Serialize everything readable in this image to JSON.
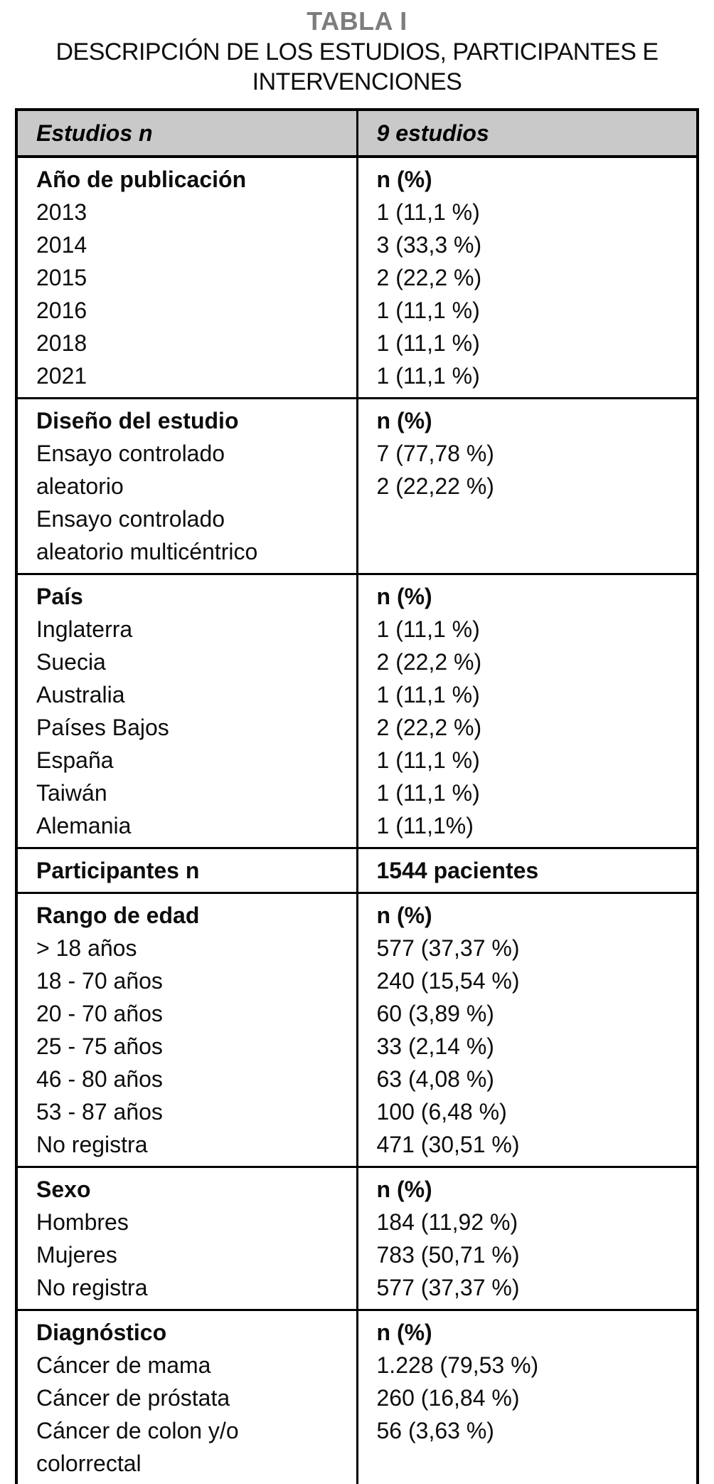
{
  "page": {
    "title": "TABLA I",
    "subtitle_lines": [
      "DESCRIPCIÓN DE LOS ESTUDIOS, PARTICIPANTES E",
      "INTERVENCIONES"
    ]
  },
  "colors": {
    "header_bg": "#c9c9c9",
    "title_gray": "#7d7d7d",
    "border": "#000000"
  },
  "table": {
    "header": {
      "col1": "Estudios n",
      "col2": "9 estudios"
    },
    "sections": [
      {
        "id": "ano-de-publicacion",
        "left": [
          "Año de publicación",
          "2013",
          "2014",
          "2015",
          "2016",
          "2018",
          "2021"
        ],
        "right": [
          "n (%)",
          "1 (11,1 %)",
          "3 (33,3 %)",
          "2 (22,2 %)",
          "1 (11,1 %)",
          "1 (11,1 %)",
          "1 (11,1 %)"
        ]
      },
      {
        "id": "diseno-del-estudio",
        "left": [
          "Diseño del estudio",
          "Ensayo controlado",
          "aleatorio",
          "Ensayo controlado",
          "aleatorio multicéntrico"
        ],
        "right": [
          "n (%)",
          "7 (77,78 %)",
          "2 (22,22 %)"
        ]
      },
      {
        "id": "pais",
        "left": [
          "País",
          "Inglaterra",
          "Suecia",
          "Australia",
          "Países Bajos",
          "España",
          "Taiwán",
          "Alemania"
        ],
        "right": [
          "n (%)",
          "1 (11,1 %)",
          "2 (22,2 %)",
          "1 (11,1 %)",
          "2 (22,2 %)",
          "1 (11,1 %)",
          "1 (11,1 %)",
          "1 (11,1%)"
        ]
      },
      {
        "id": "participantes",
        "left": [
          "Participantes n"
        ],
        "right": [
          "1544 pacientes"
        ]
      },
      {
        "id": "rango-de-edad",
        "left": [
          "Rango de edad",
          "> 18 años",
          "18 - 70 años",
          "20 - 70 años",
          "25 - 75 años",
          "46 - 80 años",
          "53 - 87 años",
          "No registra"
        ],
        "right": [
          "n (%)",
          "577 (37,37 %)",
          "240 (15,54 %)",
          "60 (3,89 %)",
          "33 (2,14 %)",
          "63 (4,08 %)",
          "100 (6,48 %)",
          "471 (30,51 %)"
        ]
      },
      {
        "id": "sexo",
        "left": [
          "Sexo",
          "Hombres",
          "Mujeres",
          "No registra"
        ],
        "right": [
          "n (%)",
          "184 (11,92 %)",
          "783 (50,71 %)",
          "577 (37,37 %)"
        ]
      },
      {
        "id": "diagnostico",
        "left": [
          "Diagnóstico",
          "Cáncer de mama",
          "Cáncer de próstata",
          "Cáncer de colon y/o",
          "colorrectal"
        ],
        "right": [
          "n (%)",
          "1.228 (79,53 %)",
          "260 (16,84 %)",
          "56 (3,63 %)"
        ]
      }
    ]
  }
}
